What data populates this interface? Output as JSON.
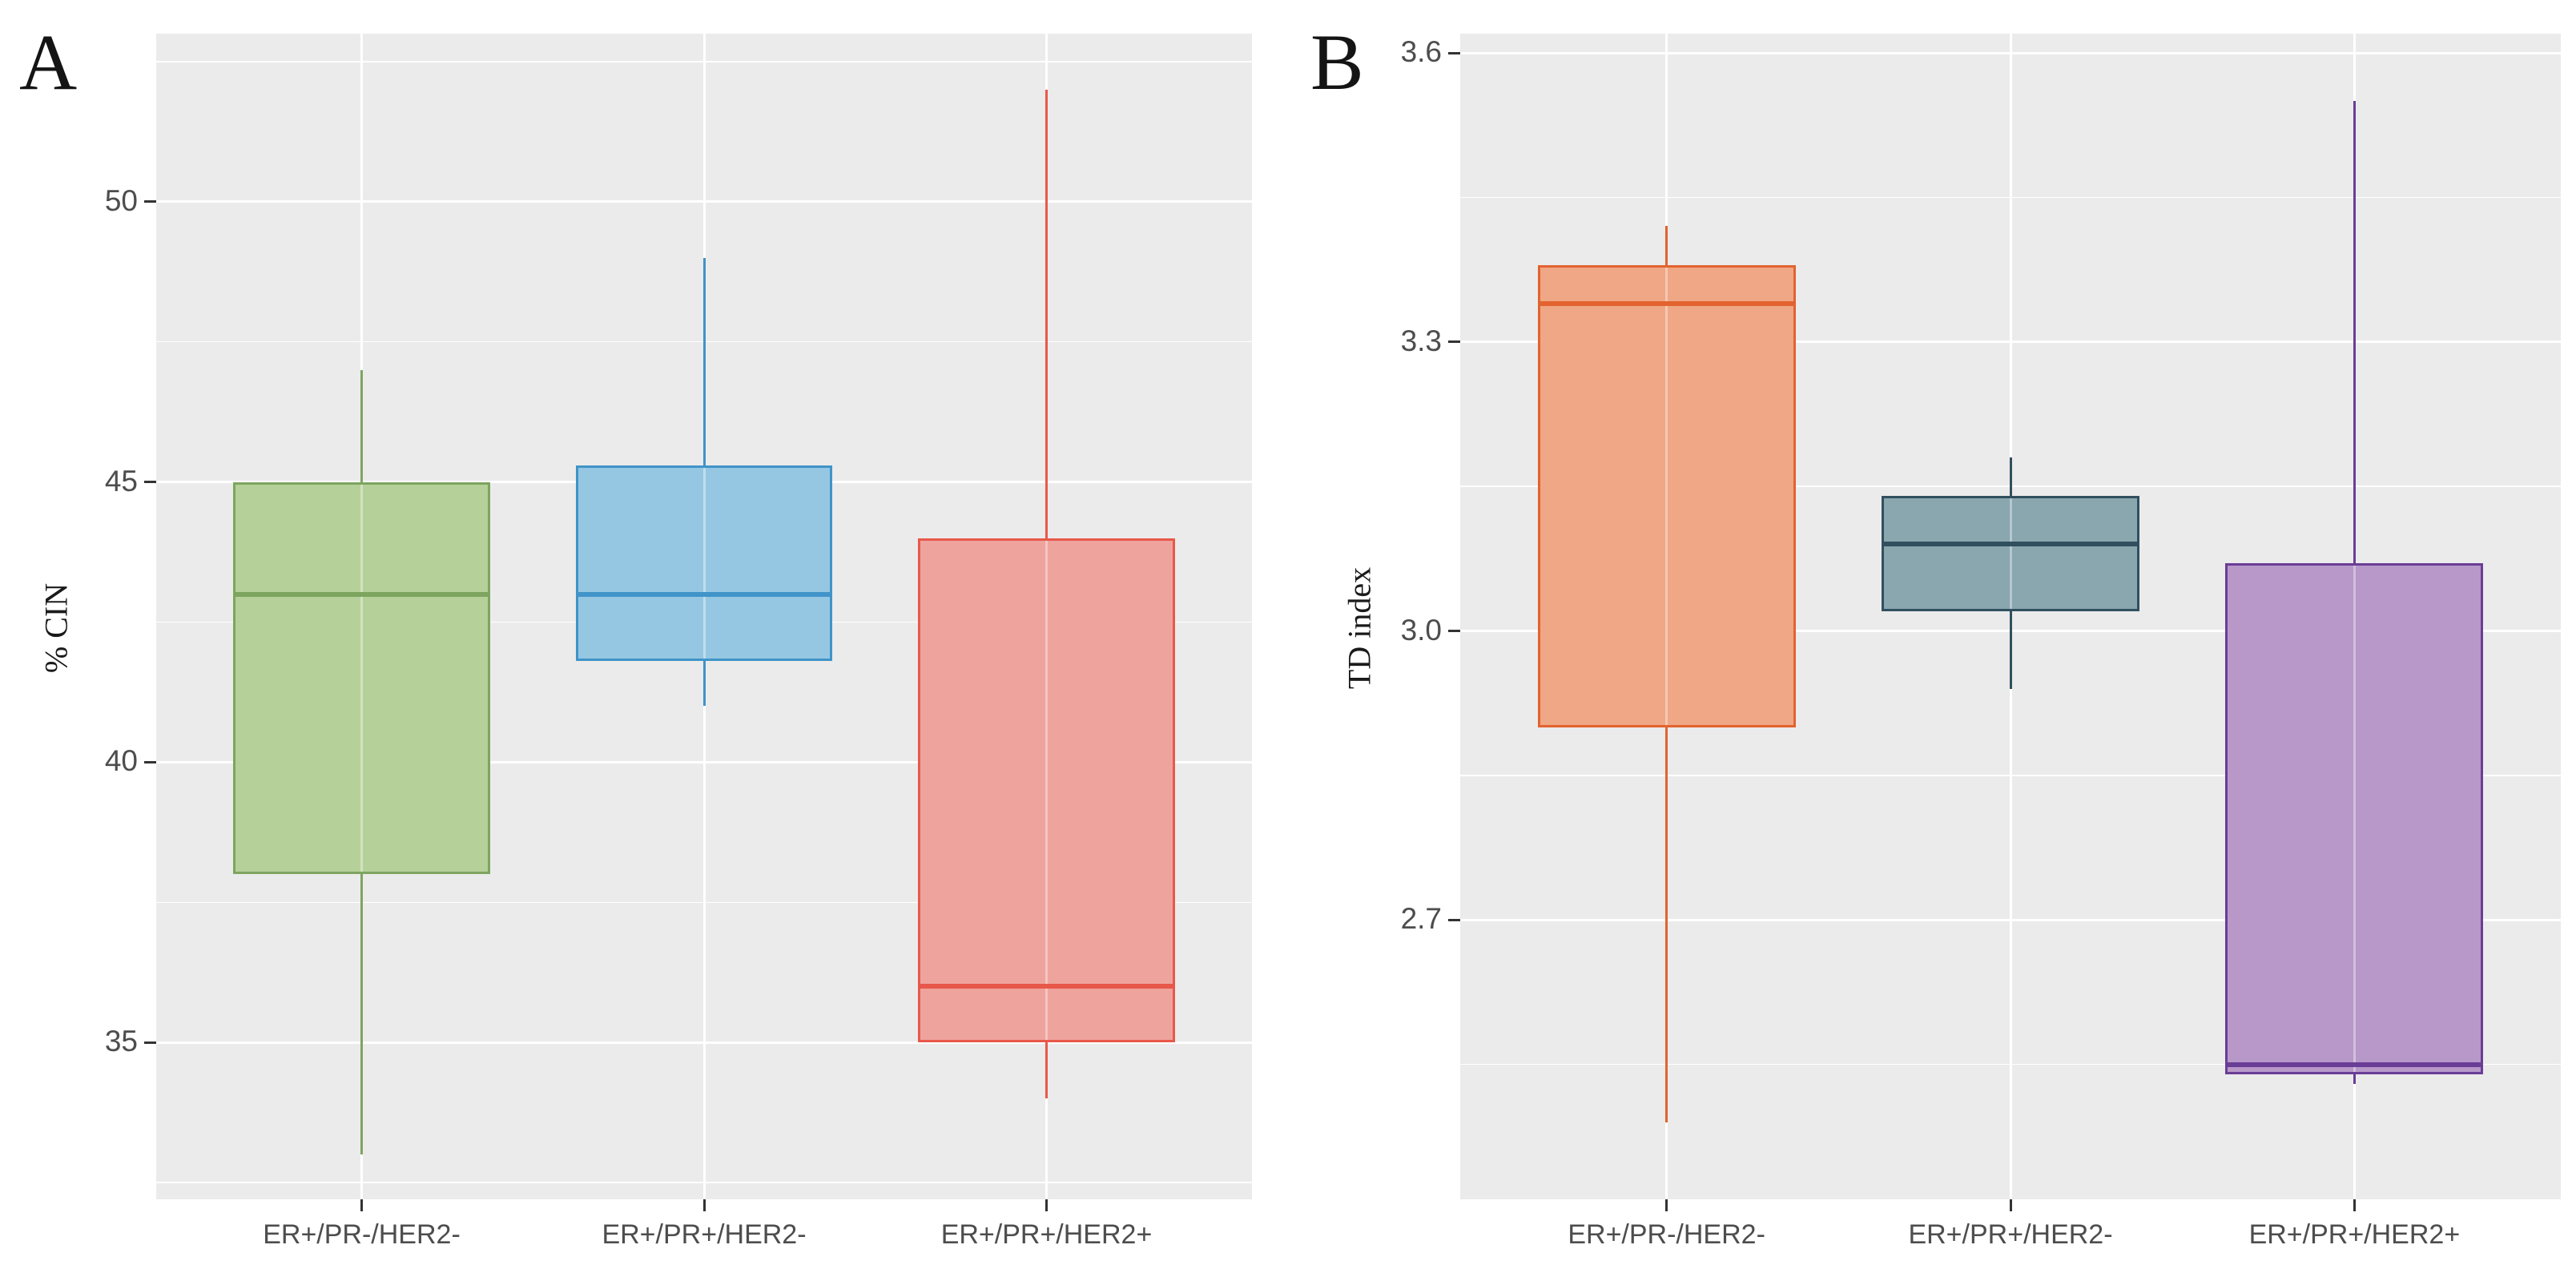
{
  "figure": {
    "background": "#ffffff",
    "panel_background": "#ebebeb",
    "gridline_color": "#ffffff",
    "tick_text_color": "#4d4d4d",
    "axis_tick_color": "#333333"
  },
  "chart_data": [
    {
      "type": "boxplot",
      "panel_label": "A",
      "title": "",
      "xlabel": "",
      "ylabel": "% CIN",
      "legend": "none",
      "grid": "major and minor white gridlines on gray panel",
      "categories": [
        "ER+/PR-/HER2-",
        "ER+/PR+/HER2-",
        "ER+/PR+/HER2+"
      ],
      "ylim": [
        32.2,
        53.0
      ],
      "yticks": [
        35,
        40,
        45,
        50
      ],
      "ytick_labels": [
        "35",
        "40",
        "45",
        "50"
      ],
      "minor_yticks": [
        32.5,
        37.5,
        42.5,
        47.5,
        52.5
      ],
      "series": [
        {
          "category": "ER+/PR-/HER2-",
          "whisker_low": 33,
          "q1": 38,
          "median": 43,
          "q3": 45,
          "whisker_high": 47,
          "fill": "#b5d199",
          "stroke": "#7da55f"
        },
        {
          "category": "ER+/PR+/HER2-",
          "whisker_low": 41,
          "q1": 41.8,
          "median": 43,
          "q3": 45.3,
          "whisker_high": 49,
          "fill": "#96c7e2",
          "stroke": "#4094c8"
        },
        {
          "category": "ER+/PR+/HER2+",
          "whisker_low": 34,
          "q1": 35,
          "median": 36,
          "q3": 44,
          "whisker_high": 52,
          "fill": "#eea49d",
          "stroke": "#e8584a"
        }
      ]
    },
    {
      "type": "boxplot",
      "panel_label": "B",
      "title": "",
      "xlabel": "",
      "ylabel": "TD index",
      "legend": "none",
      "grid": "major and minor white gridlines on gray panel",
      "categories": [
        "ER+/PR-/HER2-",
        "ER+/PR+/HER2-",
        "ER+/PR+/HER2+"
      ],
      "ylim": [
        2.41,
        3.62
      ],
      "yticks": [
        2.7,
        3.0,
        3.3,
        3.6
      ],
      "ytick_labels": [
        "2.7",
        "3.0",
        "3.3",
        "3.6"
      ],
      "minor_yticks": [
        2.55,
        2.85,
        3.15,
        3.45
      ],
      "series": [
        {
          "category": "ER+/PR-/HER2-",
          "whisker_low": 2.49,
          "q1": 2.9,
          "median": 3.34,
          "q3": 3.38,
          "whisker_high": 3.42,
          "fill": "#efa785",
          "stroke": "#e2632f"
        },
        {
          "category": "ER+/PR+/HER2-",
          "whisker_low": 2.94,
          "q1": 3.02,
          "median": 3.09,
          "q3": 3.14,
          "whisker_high": 3.18,
          "fill": "#8aa6af",
          "stroke": "#31505f"
        },
        {
          "category": "ER+/PR+/HER2+",
          "whisker_low": 2.53,
          "q1": 2.54,
          "median": 2.55,
          "q3": 3.07,
          "whisker_high": 3.55,
          "fill": "#b798c8",
          "stroke": "#6a3d96"
        }
      ]
    }
  ]
}
